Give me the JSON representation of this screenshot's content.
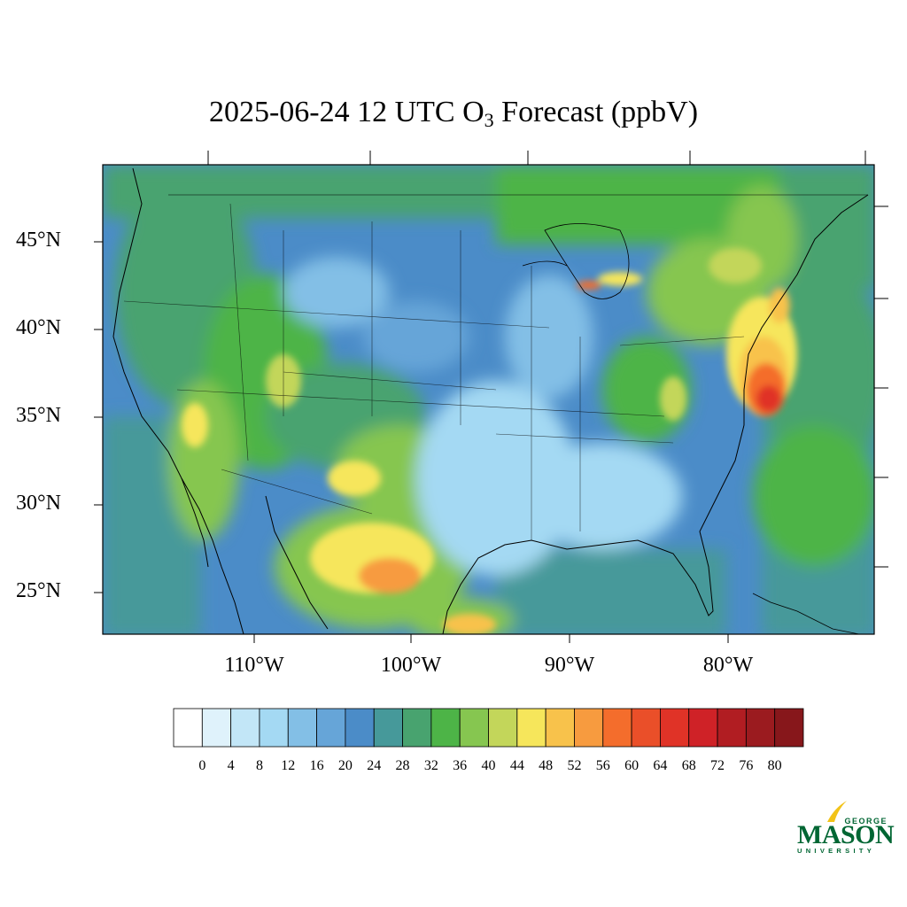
{
  "title": {
    "prefix": "2025-06-24 12 UTC O",
    "subscript": "3",
    "suffix": " Forecast (ppbV)"
  },
  "map": {
    "lat_labels": [
      "45°N",
      "40°N",
      "35°N",
      "30°N",
      "25°N"
    ],
    "lon_labels": [
      "110°W",
      "100°W",
      "90°W",
      "80°W"
    ]
  },
  "colorbar": {
    "ticks": [
      "0",
      "4",
      "8",
      "12",
      "16",
      "20",
      "24",
      "28",
      "32",
      "36",
      "40",
      "44",
      "48",
      "52",
      "56",
      "60",
      "64",
      "68",
      "72",
      "76",
      "80"
    ],
    "colors": [
      "#ffffff",
      "#dff2fb",
      "#c2e6f7",
      "#a4d9f3",
      "#83bfe6",
      "#66a5d8",
      "#4b8cc8",
      "#46999a",
      "#48a36f",
      "#4db447",
      "#86c650",
      "#c3d65a",
      "#f6e65b",
      "#f8c24b",
      "#f79b3f",
      "#f46d2c",
      "#ea4f29",
      "#e03327",
      "#cf2227",
      "#b11d22",
      "#9b1b1f",
      "#87171b"
    ]
  },
  "logo": {
    "george": "GEORGE",
    "mason": "MASON",
    "university": "UNIVERSITY"
  }
}
